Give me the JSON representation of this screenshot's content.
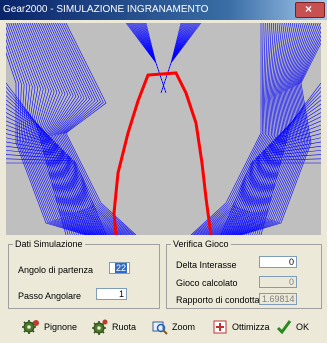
{
  "window": {
    "title": "Gear2000 - SIMULAZIONE INGRANAMENTO",
    "close_glyph": "×"
  },
  "simulation": {
    "legend": "Dati Simulazione",
    "start_angle_label": "Angolo di partenza",
    "start_angle_value": "22",
    "angular_step_label": "Passo Angolare",
    "angular_step_value": "1"
  },
  "backlash": {
    "legend": "Verifica Gioco",
    "delta_center_label": "Delta Interasse",
    "delta_center_value": "0",
    "computed_backlash_label": "Gioco calcolato",
    "computed_backlash_value": "0",
    "contact_ratio_label": "Rapporto di condotta",
    "contact_ratio_value": "1.69814"
  },
  "toolbar": {
    "pinion_label": "Pignone",
    "gear_label": "Ruota",
    "zoom_label": "Zoom",
    "optimize_label": "Ottimizza",
    "ok_label": "OK"
  },
  "colors": {
    "pinion_profile": "#0000ff",
    "gear_profile": "#ff0000",
    "canvas_bg": "#bfbfbf"
  }
}
